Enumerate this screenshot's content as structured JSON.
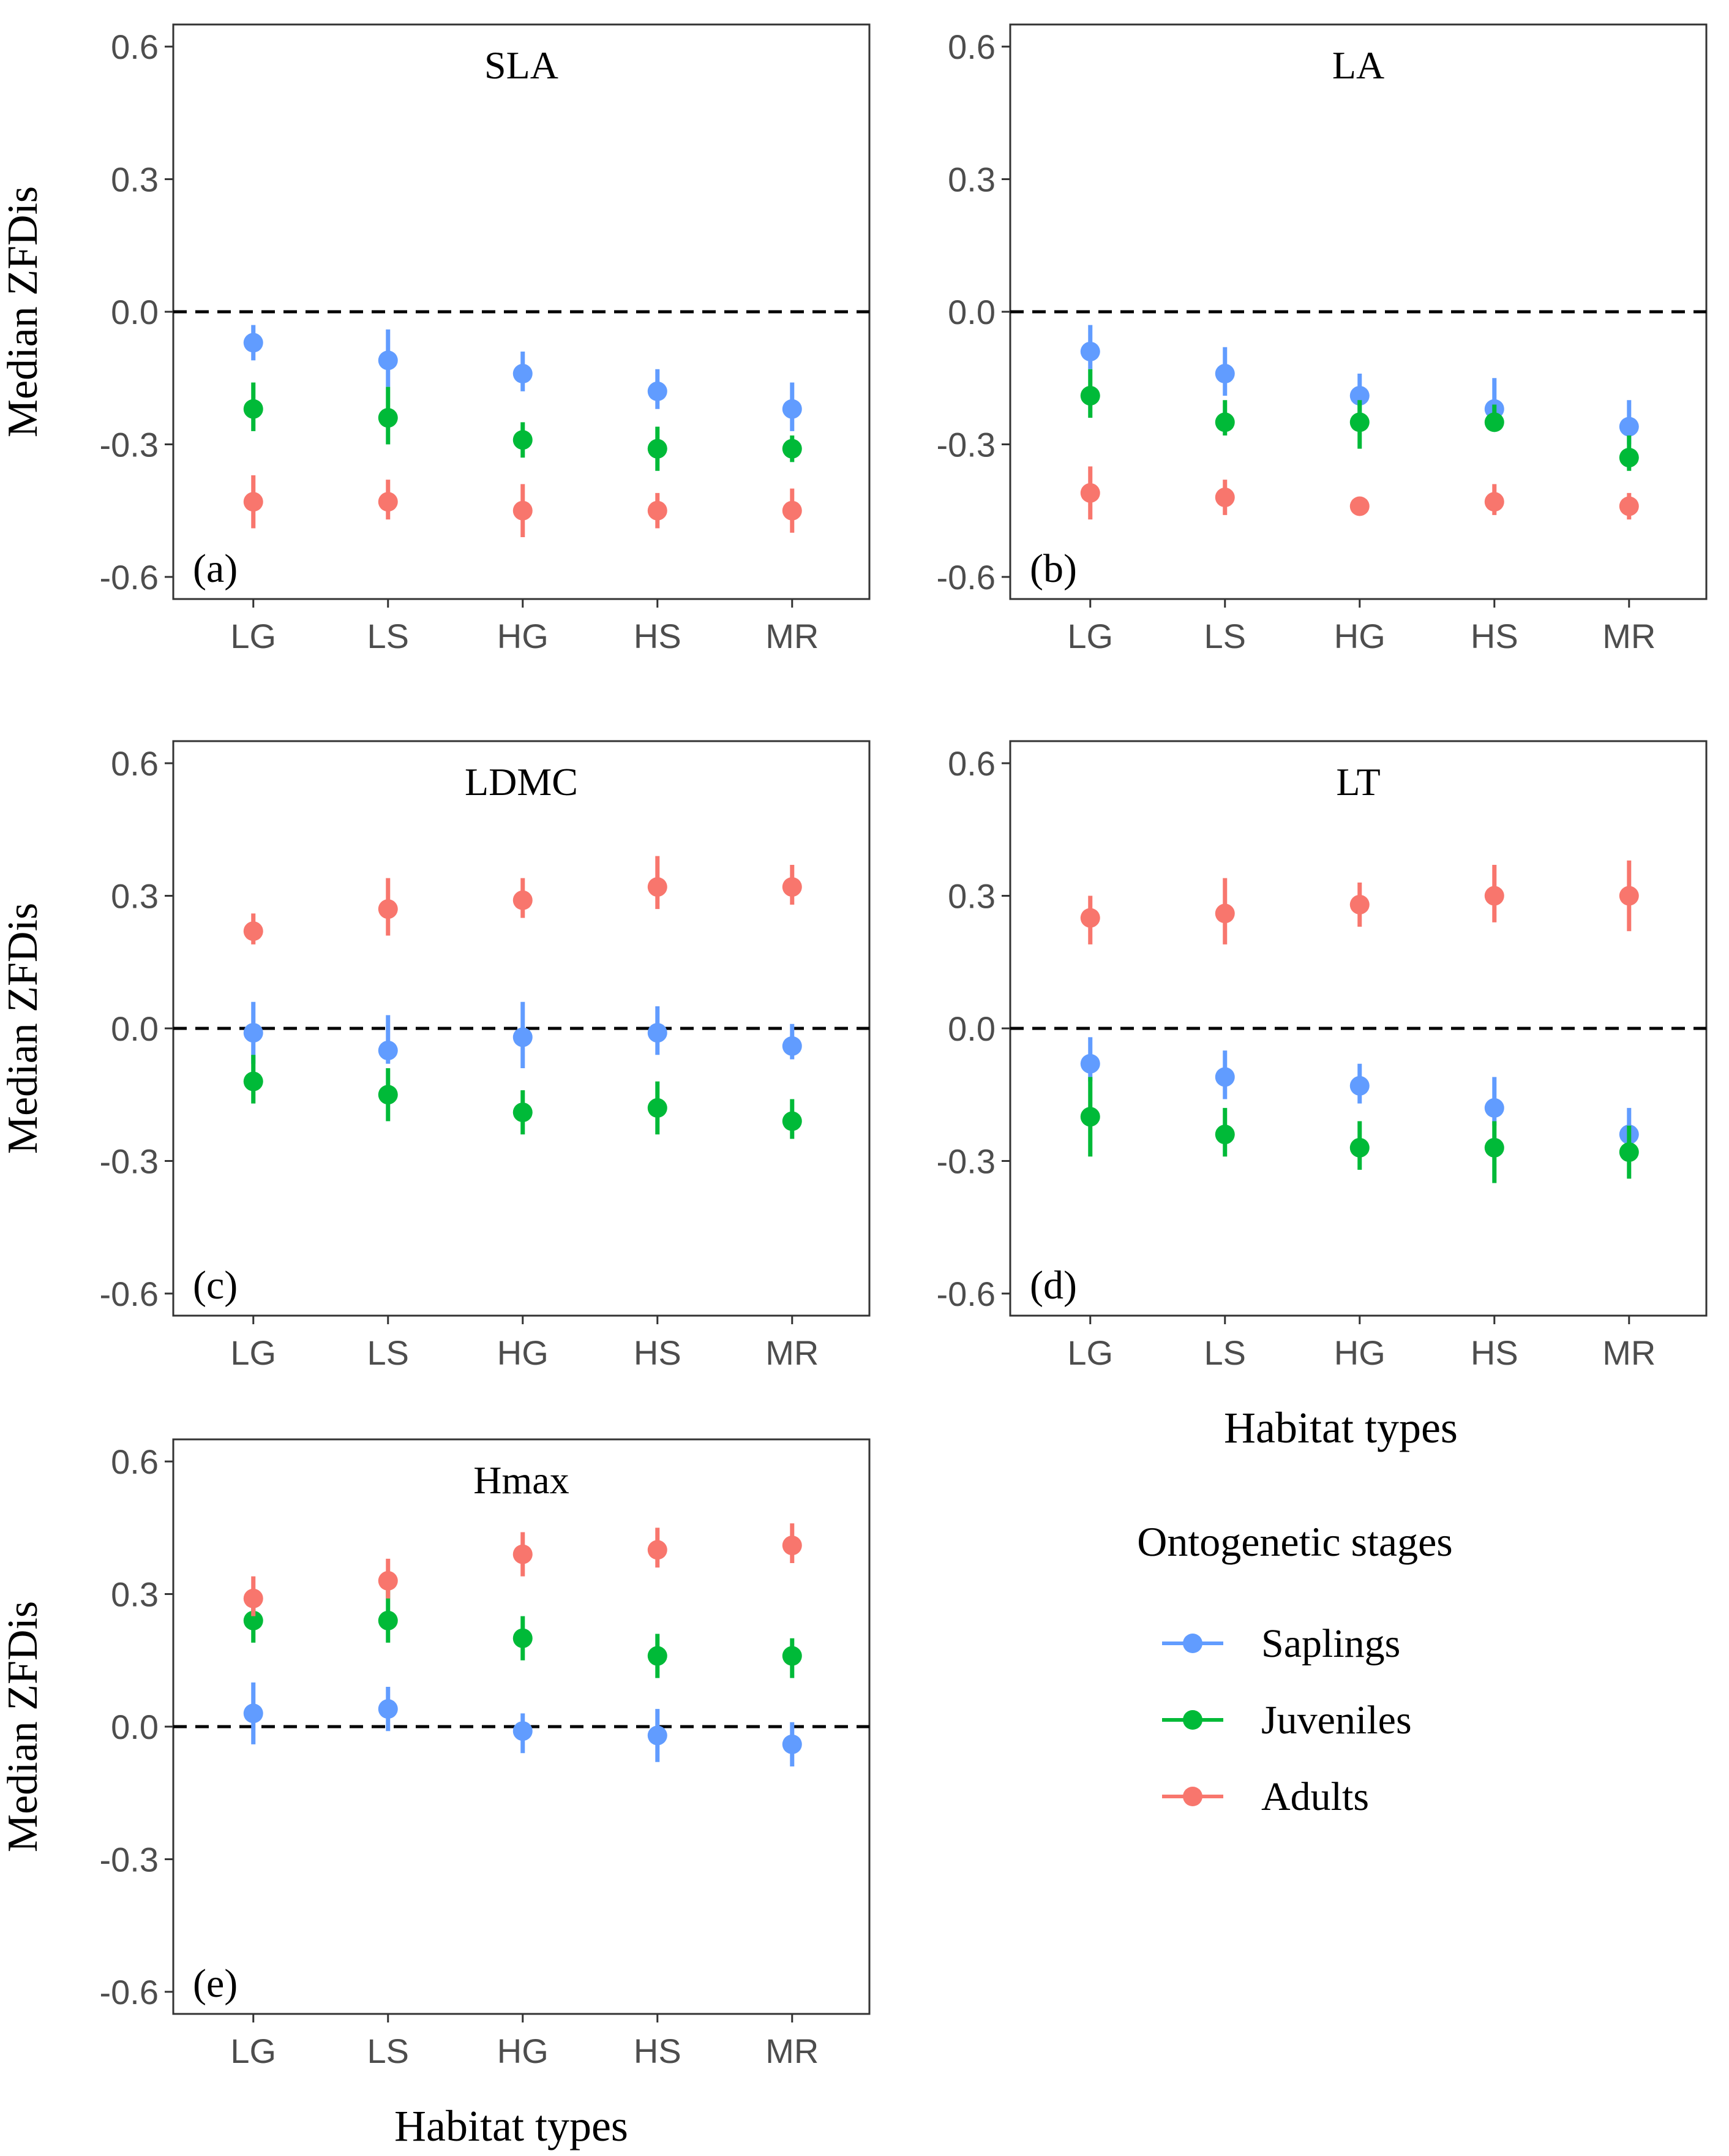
{
  "chart_data": {
    "type": "scatter",
    "figure_kind": "point-range (median with error bars), faceted",
    "categories": [
      "LG",
      "LS",
      "HG",
      "HS",
      "MR"
    ],
    "ylim": [
      -0.65,
      0.65
    ],
    "yticks": [
      "0.6",
      "0.3",
      "0.0",
      "-0.3",
      "-0.6"
    ],
    "ytick_values": [
      0.6,
      0.3,
      0.0,
      -0.3,
      -0.6
    ],
    "reference_line": 0.0,
    "ylabel": "Median ZFDis",
    "xlabel": "Habitat types",
    "legend": {
      "title": "Ontogenetic stages",
      "items": [
        "Saplings",
        "Juveniles",
        "Adults"
      ],
      "position": "bottom-right"
    },
    "series_colors": {
      "Saplings": "#619CFF",
      "Juveniles": "#00BA38",
      "Adults": "#F8766D"
    },
    "panels": [
      {
        "title": "SLA",
        "label": "(a)",
        "series": [
          {
            "name": "Saplings",
            "values": [
              -0.07,
              -0.11,
              -0.14,
              -0.18,
              -0.22
            ],
            "lower": [
              -0.11,
              -0.17,
              -0.18,
              -0.22,
              -0.27
            ],
            "upper": [
              -0.03,
              -0.04,
              -0.09,
              -0.13,
              -0.16
            ]
          },
          {
            "name": "Juveniles",
            "values": [
              -0.22,
              -0.24,
              -0.29,
              -0.31,
              -0.31
            ],
            "lower": [
              -0.27,
              -0.3,
              -0.33,
              -0.36,
              -0.34
            ],
            "upper": [
              -0.16,
              -0.17,
              -0.25,
              -0.26,
              -0.28
            ]
          },
          {
            "name": "Adults",
            "values": [
              -0.43,
              -0.43,
              -0.45,
              -0.45,
              -0.45
            ],
            "lower": [
              -0.49,
              -0.47,
              -0.51,
              -0.49,
              -0.5
            ],
            "upper": [
              -0.37,
              -0.38,
              -0.39,
              -0.41,
              -0.4
            ]
          }
        ]
      },
      {
        "title": "LA",
        "label": "(b)",
        "series": [
          {
            "name": "Saplings",
            "values": [
              -0.09,
              -0.14,
              -0.19,
              -0.22,
              -0.26
            ],
            "lower": [
              -0.13,
              -0.19,
              -0.23,
              -0.25,
              -0.3
            ],
            "upper": [
              -0.03,
              -0.08,
              -0.14,
              -0.15,
              -0.2
            ]
          },
          {
            "name": "Juveniles",
            "values": [
              -0.19,
              -0.25,
              -0.25,
              -0.25,
              -0.33
            ],
            "lower": [
              -0.24,
              -0.28,
              -0.31,
              -0.27,
              -0.36
            ],
            "upper": [
              -0.13,
              -0.2,
              -0.2,
              -0.21,
              -0.28
            ]
          },
          {
            "name": "Adults",
            "values": [
              -0.41,
              -0.42,
              -0.44,
              -0.43,
              -0.44
            ],
            "lower": [
              -0.47,
              -0.46,
              -0.46,
              -0.46,
              -0.47
            ],
            "upper": [
              -0.35,
              -0.38,
              -0.42,
              -0.39,
              -0.41
            ]
          }
        ]
      },
      {
        "title": "LDMC",
        "label": "(c)",
        "series": [
          {
            "name": "Saplings",
            "values": [
              -0.01,
              -0.05,
              -0.02,
              -0.01,
              -0.04
            ],
            "lower": [
              -0.08,
              -0.08,
              -0.09,
              -0.06,
              -0.07
            ],
            "upper": [
              0.06,
              0.03,
              0.06,
              0.05,
              0.01
            ]
          },
          {
            "name": "Juveniles",
            "values": [
              -0.12,
              -0.15,
              -0.19,
              -0.18,
              -0.21
            ],
            "lower": [
              -0.17,
              -0.21,
              -0.24,
              -0.24,
              -0.25
            ],
            "upper": [
              -0.06,
              -0.09,
              -0.14,
              -0.12,
              -0.16
            ]
          },
          {
            "name": "Adults",
            "values": [
              0.22,
              0.27,
              0.29,
              0.32,
              0.32
            ],
            "lower": [
              0.19,
              0.21,
              0.25,
              0.27,
              0.28
            ],
            "upper": [
              0.26,
              0.34,
              0.34,
              0.39,
              0.37
            ]
          }
        ]
      },
      {
        "title": "LT",
        "label": "(d)",
        "series": [
          {
            "name": "Saplings",
            "values": [
              -0.08,
              -0.11,
              -0.13,
              -0.18,
              -0.24
            ],
            "lower": [
              -0.12,
              -0.16,
              -0.17,
              -0.22,
              -0.27
            ],
            "upper": [
              -0.02,
              -0.05,
              -0.08,
              -0.11,
              -0.18
            ]
          },
          {
            "name": "Juveniles",
            "values": [
              -0.2,
              -0.24,
              -0.27,
              -0.27,
              -0.28
            ],
            "lower": [
              -0.29,
              -0.29,
              -0.32,
              -0.35,
              -0.34
            ],
            "upper": [
              -0.11,
              -0.18,
              -0.21,
              -0.21,
              -0.22
            ]
          },
          {
            "name": "Adults",
            "values": [
              0.25,
              0.26,
              0.28,
              0.3,
              0.3
            ],
            "lower": [
              0.19,
              0.19,
              0.23,
              0.24,
              0.22
            ],
            "upper": [
              0.3,
              0.34,
              0.33,
              0.37,
              0.38
            ]
          }
        ]
      },
      {
        "title": "Hmax",
        "label": "(e)",
        "series": [
          {
            "name": "Saplings",
            "values": [
              0.03,
              0.04,
              -0.01,
              -0.02,
              -0.04
            ],
            "lower": [
              -0.04,
              -0.01,
              -0.06,
              -0.08,
              -0.09
            ],
            "upper": [
              0.1,
              0.09,
              0.03,
              0.04,
              0.01
            ]
          },
          {
            "name": "Juveniles",
            "values": [
              0.24,
              0.24,
              0.2,
              0.16,
              0.16
            ],
            "lower": [
              0.19,
              0.19,
              0.15,
              0.11,
              0.11
            ],
            "upper": [
              0.29,
              0.31,
              0.25,
              0.21,
              0.2
            ]
          },
          {
            "name": "Adults",
            "values": [
              0.29,
              0.33,
              0.39,
              0.4,
              0.41
            ],
            "lower": [
              0.25,
              0.29,
              0.34,
              0.36,
              0.37
            ],
            "upper": [
              0.34,
              0.38,
              0.44,
              0.45,
              0.46
            ]
          }
        ]
      }
    ]
  }
}
